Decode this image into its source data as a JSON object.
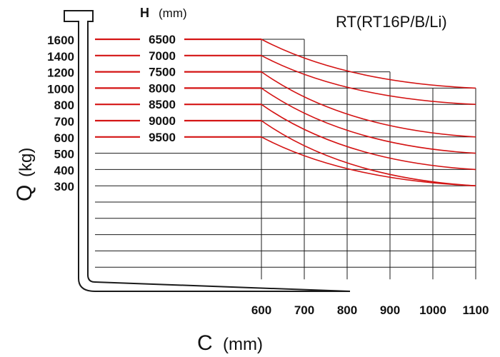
{
  "chart_data": {
    "type": "line",
    "title": "RT(RT16P/B/Li)",
    "height_header": "H",
    "height_unit": "(mm)",
    "xlabel": "C",
    "xunit": "(mm)",
    "ylabel": "Q",
    "yunit": "(kg)",
    "x_ticks": [
      "600",
      "700",
      "800",
      "900",
      "1000",
      "1100"
    ],
    "y_ticks": [
      "1600",
      "1400",
      "1200",
      "1000",
      "800",
      "700",
      "600",
      "500",
      "400",
      "300"
    ],
    "series": [
      {
        "name": "6500",
        "x": [
          600,
          1100
        ],
        "y": [
          1600,
          1000
        ]
      },
      {
        "name": "7000",
        "x": [
          600,
          1100
        ],
        "y": [
          1400,
          800
        ]
      },
      {
        "name": "7500",
        "x": [
          600,
          1100
        ],
        "y": [
          1200,
          600
        ]
      },
      {
        "name": "8000",
        "x": [
          600,
          1100
        ],
        "y": [
          1000,
          500
        ]
      },
      {
        "name": "8500",
        "x": [
          600,
          1100
        ],
        "y": [
          800,
          400
        ]
      },
      {
        "name": "9000",
        "x": [
          600,
          1100
        ],
        "y": [
          700,
          300
        ]
      },
      {
        "name": "9500",
        "x": [
          600,
          1100
        ],
        "y": [
          600,
          300
        ]
      }
    ],
    "colors": {
      "curve": "#d41414",
      "grid": "#1a1a1a"
    },
    "grid": true
  }
}
